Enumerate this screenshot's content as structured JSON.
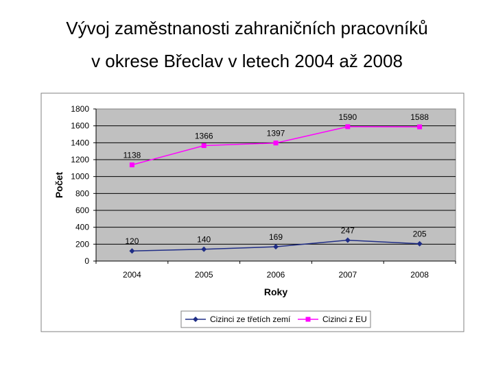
{
  "slide": {
    "title_line1": "Vývoj zaměstnanosti zahraničních pracovníků",
    "title_line2": "v okrese Břeclav v letech 2004 až 2008"
  },
  "chart_data": {
    "type": "line",
    "categories": [
      "2004",
      "2005",
      "2006",
      "2007",
      "2008"
    ],
    "series": [
      {
        "name": "Cizinci ze třetích zemí",
        "values": [
          120,
          140,
          169,
          247,
          205
        ],
        "color": "#1f2d86",
        "marker": "diamond"
      },
      {
        "name": "Cizinci z EU",
        "values": [
          1138,
          1366,
          1397,
          1590,
          1588
        ],
        "color": "#ff00ff",
        "marker": "square"
      }
    ],
    "xlabel": "Roky",
    "ylabel": "Počet",
    "ylim": [
      0,
      1800
    ],
    "yticks": [
      0,
      200,
      400,
      600,
      800,
      1000,
      1200,
      1400,
      1600,
      1800
    ],
    "grid": true,
    "plot_background": "#c0c0c0",
    "legend_position": "bottom",
    "data_labels": true
  }
}
